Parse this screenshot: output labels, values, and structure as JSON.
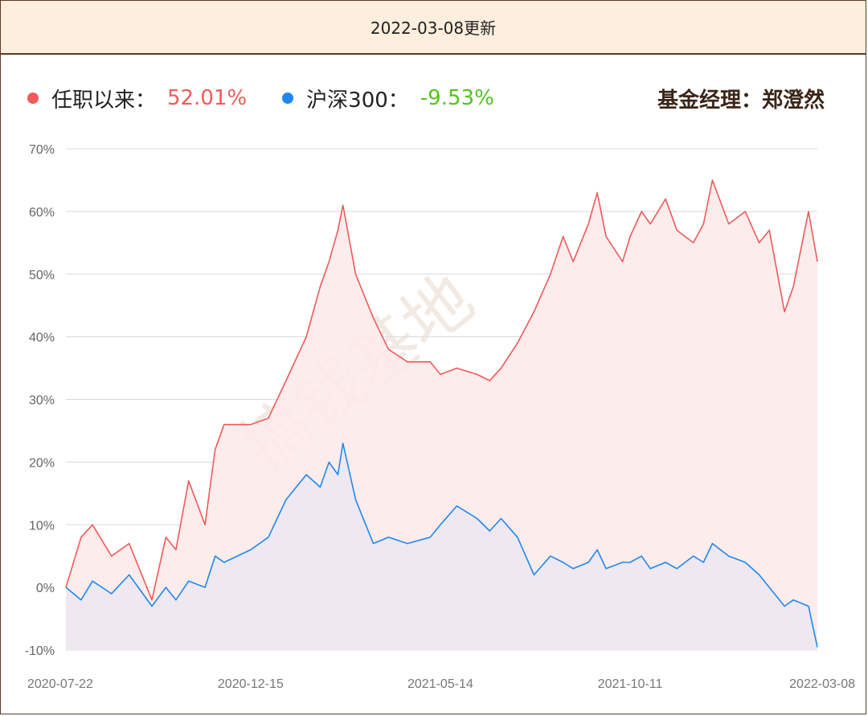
{
  "header": {
    "title": "2022-03-08更新"
  },
  "legend": {
    "fund_label": "任职以来：",
    "fund_value": "52.01%",
    "fund_color": "#f05a5a",
    "index_label": "沪深300：",
    "index_value": "-9.53%",
    "index_color": "#1e88f0",
    "index_value_color": "#52c41a",
    "manager": "基金经理：郑澄然"
  },
  "watermark": "搞钱基地",
  "chart_data": {
    "type": "area",
    "ylim": [
      -10,
      70
    ],
    "yticks": [
      "70%",
      "60%",
      "50%",
      "40%",
      "30%",
      "20%",
      "10%",
      "0%",
      "-10%"
    ],
    "yticks_values": [
      70,
      60,
      50,
      40,
      30,
      20,
      10,
      0,
      -10
    ],
    "xticks": [
      "2020-07-22",
      "2020-12-15",
      "2021-05-14",
      "2021-10-11",
      "2022-03-08"
    ],
    "grid": true,
    "series": [
      {
        "name": "任职以来",
        "color": "#f05a5a",
        "fill": "#fdeaea",
        "points": [
          [
            "2020-07-22",
            0
          ],
          [
            "2020-08-03",
            8
          ],
          [
            "2020-08-12",
            10
          ],
          [
            "2020-08-27",
            5
          ],
          [
            "2020-09-10",
            7
          ],
          [
            "2020-09-28",
            -2
          ],
          [
            "2020-10-09",
            8
          ],
          [
            "2020-10-17",
            6
          ],
          [
            "2020-10-27",
            17
          ],
          [
            "2020-11-09",
            10
          ],
          [
            "2020-11-17",
            22
          ],
          [
            "2020-11-24",
            26
          ],
          [
            "2020-12-15",
            26
          ],
          [
            "2020-12-29",
            27
          ],
          [
            "2021-01-12",
            33
          ],
          [
            "2021-01-28",
            40
          ],
          [
            "2021-02-08",
            48
          ],
          [
            "2021-02-15",
            52
          ],
          [
            "2021-02-22",
            57
          ],
          [
            "2021-02-26",
            61
          ],
          [
            "2021-03-08",
            50
          ],
          [
            "2021-03-22",
            43
          ],
          [
            "2021-04-03",
            38
          ],
          [
            "2021-04-18",
            36
          ],
          [
            "2021-05-06",
            36
          ],
          [
            "2021-05-14",
            34
          ],
          [
            "2021-05-27",
            35
          ],
          [
            "2021-06-12",
            34
          ],
          [
            "2021-06-22",
            33
          ],
          [
            "2021-07-01",
            35
          ],
          [
            "2021-07-14",
            39
          ],
          [
            "2021-07-27",
            44
          ],
          [
            "2021-08-09",
            50
          ],
          [
            "2021-08-19",
            56
          ],
          [
            "2021-08-27",
            52
          ],
          [
            "2021-09-08",
            58
          ],
          [
            "2021-09-15",
            63
          ],
          [
            "2021-09-22",
            56
          ],
          [
            "2021-10-05",
            52
          ],
          [
            "2021-10-11",
            56
          ],
          [
            "2021-10-20",
            60
          ],
          [
            "2021-10-27",
            58
          ],
          [
            "2021-11-08",
            62
          ],
          [
            "2021-11-17",
            57
          ],
          [
            "2021-11-30",
            55
          ],
          [
            "2021-12-08",
            58
          ],
          [
            "2021-12-15",
            65
          ],
          [
            "2021-12-28",
            58
          ],
          [
            "2022-01-10",
            60
          ],
          [
            "2022-01-21",
            55
          ],
          [
            "2022-01-29",
            57
          ],
          [
            "2022-02-10",
            44
          ],
          [
            "2022-02-17",
            48
          ],
          [
            "2022-03-01",
            60
          ],
          [
            "2022-03-08",
            52
          ]
        ]
      },
      {
        "name": "沪深300",
        "color": "#1e88f0",
        "fill": "#ece8f2",
        "points": [
          [
            "2020-07-22",
            0
          ],
          [
            "2020-08-03",
            -2
          ],
          [
            "2020-08-12",
            1
          ],
          [
            "2020-08-27",
            -1
          ],
          [
            "2020-09-10",
            2
          ],
          [
            "2020-09-28",
            -3
          ],
          [
            "2020-10-09",
            0
          ],
          [
            "2020-10-17",
            -2
          ],
          [
            "2020-10-27",
            1
          ],
          [
            "2020-11-09",
            0
          ],
          [
            "2020-11-17",
            5
          ],
          [
            "2020-11-24",
            4
          ],
          [
            "2020-12-15",
            6
          ],
          [
            "2020-12-29",
            8
          ],
          [
            "2021-01-12",
            14
          ],
          [
            "2021-01-28",
            18
          ],
          [
            "2021-02-08",
            16
          ],
          [
            "2021-02-15",
            20
          ],
          [
            "2021-02-22",
            18
          ],
          [
            "2021-02-26",
            23
          ],
          [
            "2021-03-08",
            14
          ],
          [
            "2021-03-22",
            7
          ],
          [
            "2021-04-03",
            8
          ],
          [
            "2021-04-18",
            7
          ],
          [
            "2021-05-06",
            8
          ],
          [
            "2021-05-14",
            10
          ],
          [
            "2021-05-27",
            13
          ],
          [
            "2021-06-12",
            11
          ],
          [
            "2021-06-22",
            9
          ],
          [
            "2021-07-01",
            11
          ],
          [
            "2021-07-14",
            8
          ],
          [
            "2021-07-27",
            2
          ],
          [
            "2021-08-09",
            5
          ],
          [
            "2021-08-19",
            4
          ],
          [
            "2021-08-27",
            3
          ],
          [
            "2021-09-08",
            4
          ],
          [
            "2021-09-15",
            6
          ],
          [
            "2021-09-22",
            3
          ],
          [
            "2021-10-05",
            4
          ],
          [
            "2021-10-11",
            4
          ],
          [
            "2021-10-20",
            5
          ],
          [
            "2021-10-27",
            3
          ],
          [
            "2021-11-08",
            4
          ],
          [
            "2021-11-17",
            3
          ],
          [
            "2021-11-30",
            5
          ],
          [
            "2021-12-08",
            4
          ],
          [
            "2021-12-15",
            7
          ],
          [
            "2021-12-28",
            5
          ],
          [
            "2022-01-10",
            4
          ],
          [
            "2022-01-21",
            2
          ],
          [
            "2022-01-29",
            0
          ],
          [
            "2022-02-10",
            -3
          ],
          [
            "2022-02-17",
            -2
          ],
          [
            "2022-03-01",
            -3
          ],
          [
            "2022-03-08",
            -9.53
          ]
        ]
      }
    ]
  }
}
